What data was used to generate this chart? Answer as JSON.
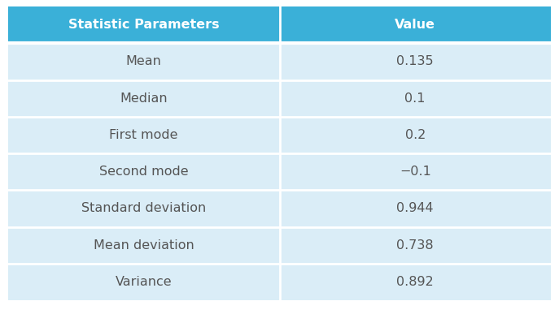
{
  "header": [
    "Statistic Parameters",
    "Value"
  ],
  "rows": [
    [
      "Mean",
      "0.135"
    ],
    [
      "Median",
      "0.1"
    ],
    [
      "First mode",
      "0.2"
    ],
    [
      "Second mode",
      "−0.1"
    ],
    [
      "Standard deviation",
      "0.944"
    ],
    [
      "Mean deviation",
      "0.738"
    ],
    [
      "Variance",
      "0.892"
    ]
  ],
  "header_bg": "#3ab0d8",
  "header_text_color": "#ffffff",
  "row_bg": "#daedf7",
  "row_text_color": "#555555",
  "border_color": "#ffffff",
  "fig_bg": "#ffffff",
  "col_split": 0.5,
  "header_fontsize": 11.5,
  "row_fontsize": 11.5
}
